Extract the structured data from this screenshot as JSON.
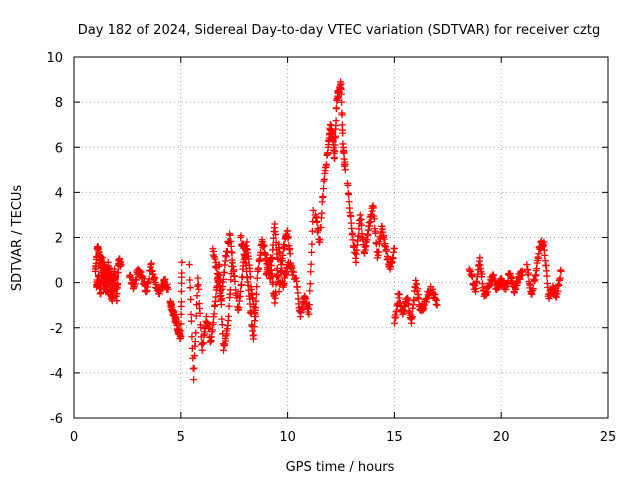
{
  "chart_data": {
    "type": "scatter",
    "title": "Day 182 of 2024, Sidereal Day-to-day VTEC variation (SDTVAR) for receiver cztg",
    "xlabel": "GPS time / hours",
    "ylabel": "SDTVAR / TECUs",
    "xlim": [
      0,
      25
    ],
    "ylim": [
      -6,
      10
    ],
    "xticks": [
      0,
      5,
      10,
      15,
      20,
      25
    ],
    "yticks": [
      -6,
      -4,
      -2,
      0,
      2,
      4,
      6,
      8,
      10
    ],
    "grid": true,
    "marker": "+",
    "series": [
      {
        "name": "SDTVAR",
        "color": "#ff0000",
        "segments": [
          {
            "x": [
              1.0,
              1.1,
              1.2,
              1.3,
              1.4,
              1.5,
              1.6,
              1.7,
              1.8,
              1.9,
              2.0,
              2.1,
              2.2
            ],
            "y": [
              0.5,
              1.6,
              1.2,
              0.8,
              0.4,
              -0.4,
              0.9,
              -0.5,
              -0.7,
              0.6,
              -0.8,
              1.0,
              0.8
            ]
          },
          {
            "x": [
              1.05,
              1.15,
              1.25,
              1.35,
              1.45,
              1.55,
              1.65,
              1.75,
              1.85,
              1.95
            ],
            "y": [
              -0.2,
              0.3,
              -0.5,
              1.1,
              0.2,
              -0.3,
              0.6,
              0.1,
              -0.4,
              0.3
            ]
          },
          {
            "x": [
              2.6,
              2.8,
              3.0,
              3.2,
              3.4,
              3.6,
              3.8,
              4.0,
              4.2,
              4.4
            ],
            "y": [
              0.3,
              -0.2,
              0.6,
              0.2,
              -0.4,
              0.8,
              0.0,
              -0.5,
              0.1,
              -0.3
            ]
          },
          {
            "x": [
              4.5,
              4.6,
              4.7,
              4.8,
              4.9,
              5.0,
              5.05
            ],
            "y": [
              -0.9,
              -1.2,
              -1.5,
              -1.8,
              -2.2,
              -2.4,
              0.9
            ]
          },
          {
            "x": [
              5.4,
              5.6,
              5.8,
              6.0,
              6.2,
              6.4,
              6.6,
              6.8,
              7.0,
              7.2,
              7.4
            ],
            "y": [
              0.8,
              -4.3,
              0.2,
              -3.0,
              -1.5,
              -2.6,
              -1.0,
              0.8,
              -3.0,
              -1.9,
              1.0
            ]
          },
          {
            "x": [
              6.5,
              6.7,
              6.9,
              7.1,
              7.3,
              7.5,
              7.7,
              7.9,
              8.1,
              8.3,
              8.5
            ],
            "y": [
              1.5,
              0.4,
              -0.8,
              1.2,
              2.1,
              0.3,
              -1.2,
              0.6,
              1.8,
              -0.3,
              -1.5
            ]
          },
          {
            "x": [
              7.8,
              8.0,
              8.2,
              8.4,
              8.6,
              8.8,
              9.0,
              9.2,
              9.4,
              9.6,
              9.8,
              10.0,
              10.2
            ],
            "y": [
              2.0,
              1.2,
              -0.6,
              -2.5,
              0.5,
              1.9,
              1.0,
              0.2,
              2.6,
              -0.4,
              1.5,
              2.3,
              0.5
            ]
          },
          {
            "x": [
              9.0,
              9.2,
              9.4,
              9.6,
              9.8,
              10.0,
              10.4,
              10.6,
              10.8,
              11.0,
              11.2
            ],
            "y": [
              0.4,
              1.1,
              -0.9,
              1.7,
              -0.2,
              0.8,
              0.2,
              -1.5,
              -0.6,
              -1.4,
              3.2
            ]
          },
          {
            "x": [
              11.3,
              11.5,
              11.7,
              11.9,
              12.0,
              12.1,
              12.2,
              12.3,
              12.4,
              12.5,
              12.6,
              12.7
            ],
            "y": [
              3.0,
              1.8,
              4.5,
              6.0,
              7.0,
              6.5,
              5.5,
              8.1,
              8.5,
              8.8,
              6.0,
              5.0
            ]
          },
          {
            "x": [
              12.8,
              13.0,
              13.2,
              13.4,
              13.6,
              13.8,
              14.0,
              14.2,
              14.4,
              14.6,
              14.8,
              15.0
            ],
            "y": [
              4.4,
              2.4,
              0.9,
              3.0,
              1.3,
              2.5,
              3.4,
              1.1,
              2.5,
              1.4,
              0.6,
              1.5
            ]
          },
          {
            "x": [
              15.0,
              15.2,
              15.4,
              15.6,
              15.8,
              16.0,
              16.2,
              16.4,
              16.6,
              16.8,
              17.0
            ],
            "y": [
              -1.8,
              -0.5,
              -1.4,
              -0.7,
              -1.8,
              0.1,
              -1.2,
              -1.0,
              -0.4,
              -0.3,
              -1.0
            ]
          },
          {
            "x": [
              18.5,
              18.8,
              19.0,
              19.2,
              19.4,
              19.6,
              19.8,
              20.0,
              20.2,
              20.4,
              20.6,
              20.8,
              21.0
            ],
            "y": [
              0.6,
              -0.4,
              1.1,
              -0.6,
              -0.2,
              0.3,
              -0.3,
              0.1,
              -0.2,
              0.4,
              -0.4,
              0.2,
              0.5
            ]
          },
          {
            "x": [
              21.2,
              21.4,
              21.6,
              21.8,
              22.0,
              22.2,
              22.4,
              22.6,
              22.8
            ],
            "y": [
              0.8,
              -0.5,
              0.3,
              1.6,
              1.8,
              -0.6,
              -0.3,
              -0.5,
              0.5
            ]
          }
        ]
      }
    ]
  }
}
